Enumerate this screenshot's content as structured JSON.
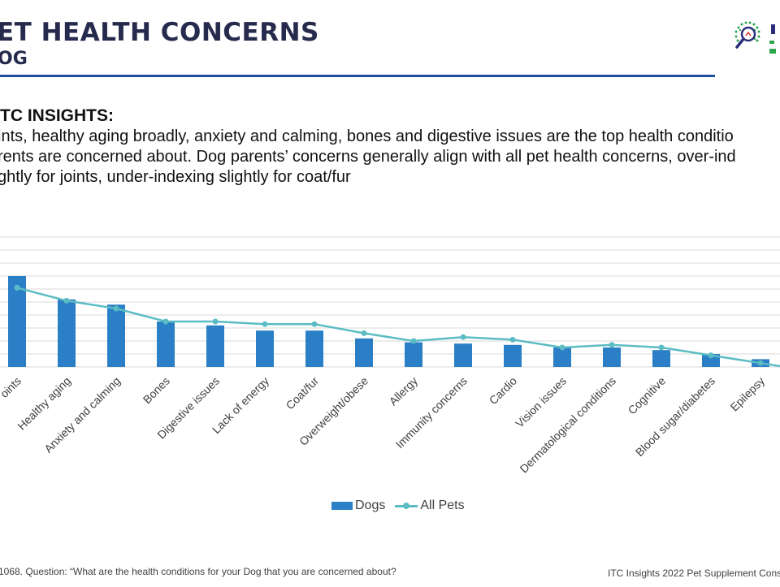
{
  "slide": {
    "title": "ET HEALTH CONCERNS",
    "subtitle": "OG"
  },
  "insights": {
    "heading": "TC INSIGHTS:",
    "lines": [
      "ints, healthy aging broadly, anxiety and calming, bones and digestive issues are the top health conditio",
      "rents are concerned about. Dog parents’ concerns generally align with all pet health concerns, over-ind",
      "ghtly for joints, under-indexing slightly for coat/fur"
    ]
  },
  "chart_data": {
    "type": "bar",
    "categories": [
      "oints",
      "Healthy aging",
      "Anxiety and calming",
      "Bones",
      "Digestive issues",
      "Lack of energy",
      "Coat/fur",
      "Overweight/obese",
      "Allergy",
      "Immunity concerns",
      "Cardio",
      "Vision issues",
      "Dermatological conditions",
      "Cognitive",
      "Blood sugar/diabetes",
      "Epilepsy"
    ],
    "series": [
      {
        "name": "Dogs",
        "kind": "bar",
        "color": "#2a7fc7",
        "values": [
          70,
          52,
          48,
          35,
          32,
          28,
          28,
          22,
          19,
          18,
          17,
          15,
          15,
          13,
          10,
          6
        ]
      },
      {
        "name": "All Pets",
        "kind": "line",
        "color": "#5bbcc4",
        "values": [
          61,
          51,
          45,
          35,
          35,
          33,
          33,
          26,
          20,
          23,
          21,
          15,
          17,
          15,
          9,
          3
        ]
      }
    ],
    "ylim": [
      0,
      100
    ],
    "grid": true,
    "legend_position": "bottom"
  },
  "legend": {
    "dogs": "Dogs",
    "all_pets": "All Pets"
  },
  "footer": {
    "footnote": "1068.  Question: “What are the health conditions for your Dog that you are concerned about?",
    "source": "ITC Insights 2022 Pet Supplement Cons"
  }
}
